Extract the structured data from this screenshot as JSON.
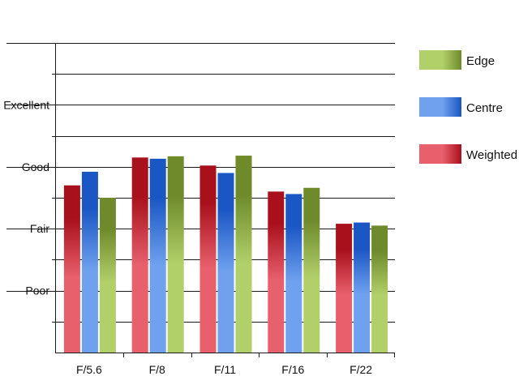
{
  "chart_data": {
    "type": "bar",
    "categories": [
      "F/5.6",
      "F/8",
      "F/11",
      "F/16",
      "F/22"
    ],
    "series": [
      {
        "name": "Weighted",
        "values": [
          2.7,
          3.15,
          3.02,
          2.6,
          2.08
        ],
        "colors": [
          "#e8606c",
          "#a8101c"
        ]
      },
      {
        "name": "Centre",
        "values": [
          2.92,
          3.13,
          2.9,
          2.56,
          2.1
        ],
        "colors": [
          "#6fa1ee",
          "#1a56c4"
        ]
      },
      {
        "name": "Edge",
        "values": [
          2.5,
          3.17,
          3.18,
          2.66,
          2.05
        ],
        "colors": [
          "#b2d06a",
          "#6e8a2a"
        ]
      }
    ],
    "y_tick_labels": [
      {
        "value": 1,
        "label": "Poor"
      },
      {
        "value": 2,
        "label": "Fair"
      },
      {
        "value": 3,
        "label": "Good"
      },
      {
        "value": 4,
        "label": "Excellent"
      }
    ],
    "ylim": [
      0,
      5
    ],
    "grid": true,
    "legend": {
      "placement": "right",
      "entries": [
        {
          "name": "Edge",
          "series": 2
        },
        {
          "name": "Centre",
          "series": 1
        },
        {
          "name": "Weighted",
          "series": 0
        }
      ]
    }
  }
}
